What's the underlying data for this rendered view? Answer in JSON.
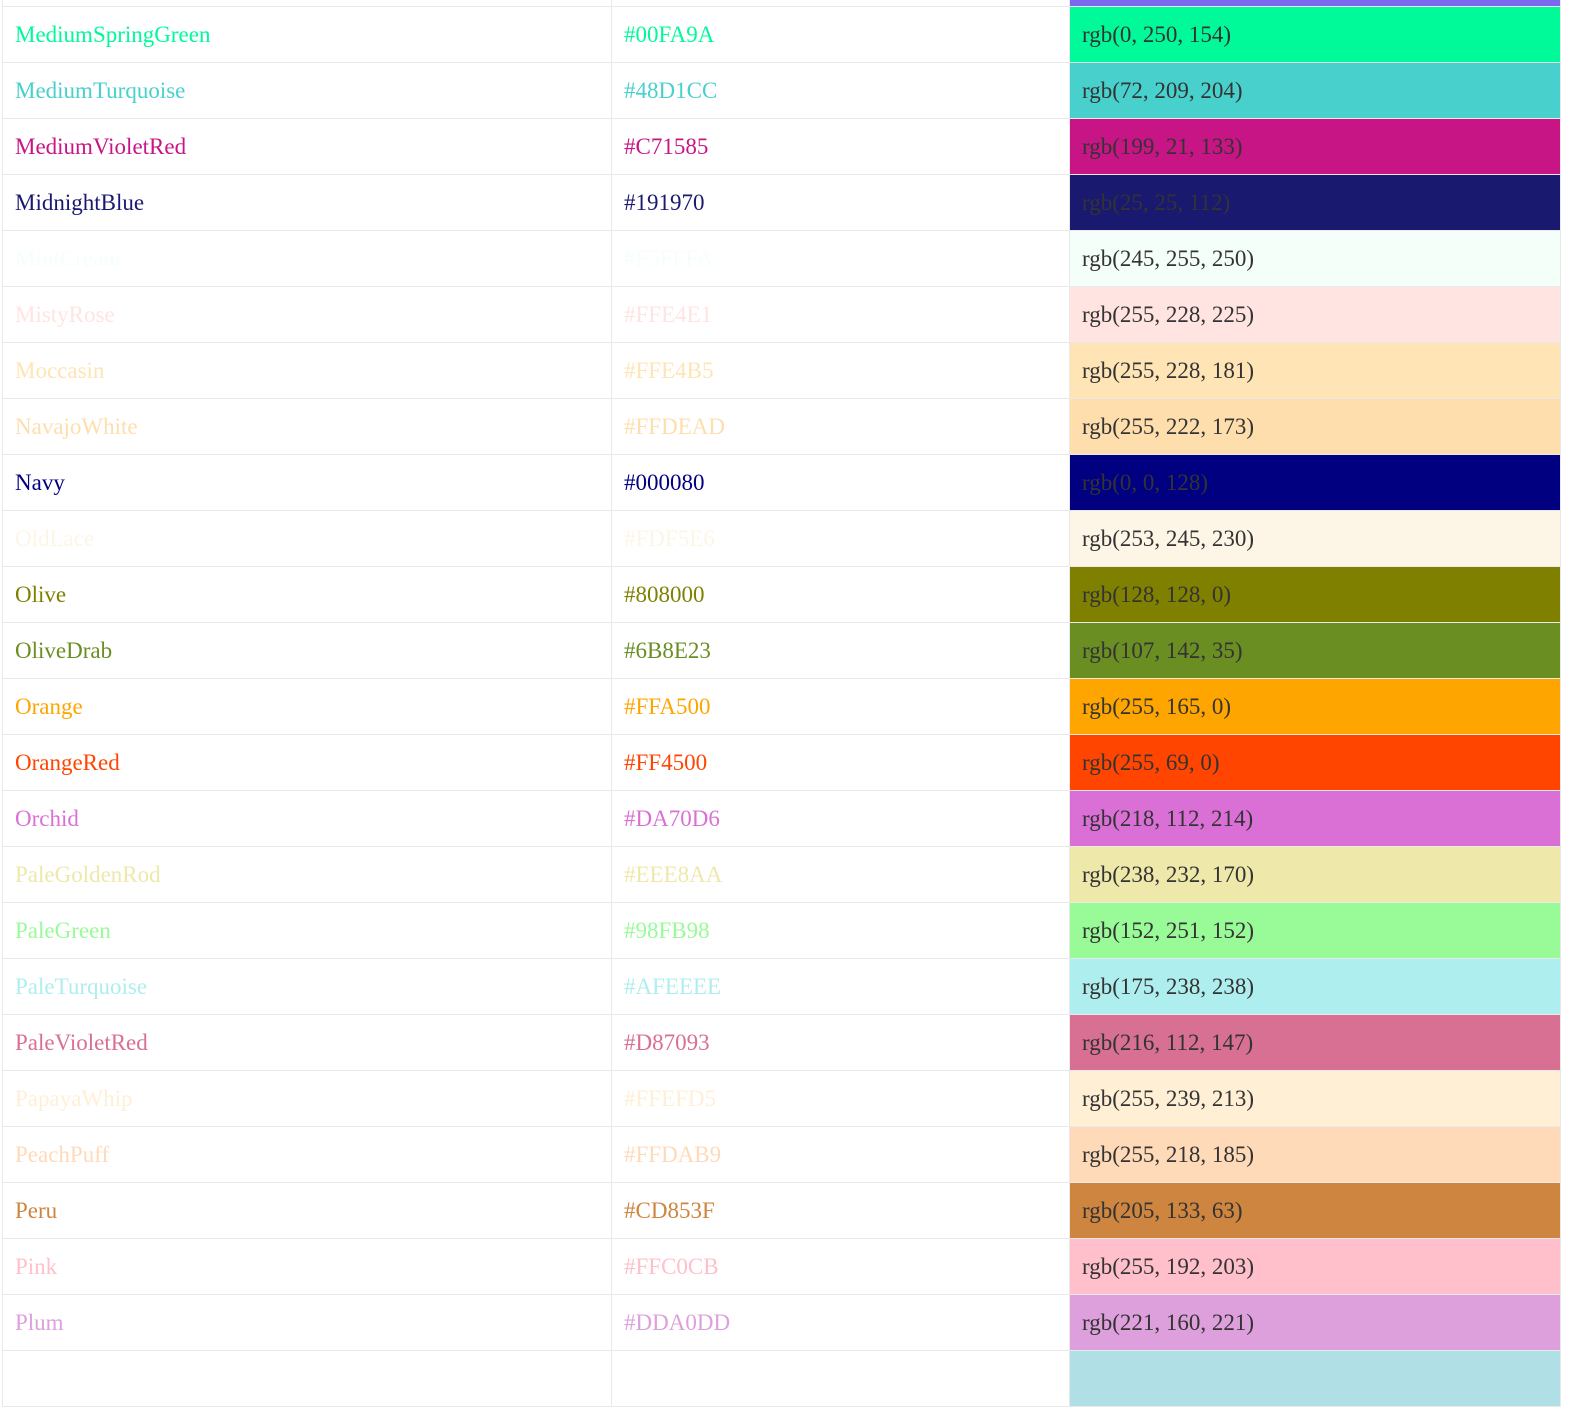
{
  "colors": [
    {
      "name": "",
      "hex": "",
      "rgb": "",
      "color": "#7B68EE"
    },
    {
      "name": "MediumSpringGreen",
      "hex": "#00FA9A",
      "rgb": "rgb(0, 250, 154)",
      "color": "#00FA9A"
    },
    {
      "name": "MediumTurquoise",
      "hex": "#48D1CC",
      "rgb": "rgb(72, 209, 204)",
      "color": "#48D1CC"
    },
    {
      "name": "MediumVioletRed",
      "hex": "#C71585",
      "rgb": "rgb(199, 21, 133)",
      "color": "#C71585"
    },
    {
      "name": "MidnightBlue",
      "hex": "#191970",
      "rgb": "rgb(25, 25, 112)",
      "color": "#191970"
    },
    {
      "name": "MintCream",
      "hex": "#F5FFFA",
      "rgb": "rgb(245, 255, 250)",
      "color": "#F5FFFA"
    },
    {
      "name": "MistyRose",
      "hex": "#FFE4E1",
      "rgb": "rgb(255, 228, 225)",
      "color": "#FFE4E1"
    },
    {
      "name": "Moccasin",
      "hex": "#FFE4B5",
      "rgb": "rgb(255, 228, 181)",
      "color": "#FFE4B5"
    },
    {
      "name": "NavajoWhite",
      "hex": "#FFDEAD",
      "rgb": "rgb(255, 222, 173)",
      "color": "#FFDEAD"
    },
    {
      "name": "Navy",
      "hex": "#000080",
      "rgb": "rgb(0, 0, 128)",
      "color": "#000080"
    },
    {
      "name": "OldLace",
      "hex": "#FDF5E6",
      "rgb": "rgb(253, 245, 230)",
      "color": "#FDF5E6"
    },
    {
      "name": "Olive",
      "hex": "#808000",
      "rgb": "rgb(128, 128, 0)",
      "color": "#808000"
    },
    {
      "name": "OliveDrab",
      "hex": "#6B8E23",
      "rgb": "rgb(107, 142, 35)",
      "color": "#6B8E23"
    },
    {
      "name": "Orange",
      "hex": "#FFA500",
      "rgb": "rgb(255, 165, 0)",
      "color": "#FFA500"
    },
    {
      "name": "OrangeRed",
      "hex": "#FF4500",
      "rgb": "rgb(255, 69, 0)",
      "color": "#FF4500"
    },
    {
      "name": "Orchid",
      "hex": "#DA70D6",
      "rgb": "rgb(218, 112, 214)",
      "color": "#DA70D6"
    },
    {
      "name": "PaleGoldenRod",
      "hex": "#EEE8AA",
      "rgb": "rgb(238, 232, 170)",
      "color": "#EEE8AA"
    },
    {
      "name": "PaleGreen",
      "hex": "#98FB98",
      "rgb": "rgb(152, 251, 152)",
      "color": "#98FB98"
    },
    {
      "name": "PaleTurquoise",
      "hex": "#AFEEEE",
      "rgb": "rgb(175, 238, 238)",
      "color": "#AFEEEE"
    },
    {
      "name": "PaleVioletRed",
      "hex": "#D87093",
      "rgb": "rgb(216, 112, 147)",
      "color": "#D87093"
    },
    {
      "name": "PapayaWhip",
      "hex": "#FFEFD5",
      "rgb": "rgb(255, 239, 213)",
      "color": "#FFEFD5"
    },
    {
      "name": "PeachPuff",
      "hex": "#FFDAB9",
      "rgb": "rgb(255, 218, 185)",
      "color": "#FFDAB9"
    },
    {
      "name": "Peru",
      "hex": "#CD853F",
      "rgb": "rgb(205, 133, 63)",
      "color": "#CD853F"
    },
    {
      "name": "Pink",
      "hex": "#FFC0CB",
      "rgb": "rgb(255, 192, 203)",
      "color": "#FFC0CB"
    },
    {
      "name": "Plum",
      "hex": "#DDA0DD",
      "rgb": "rgb(221, 160, 221)",
      "color": "#DDA0DD"
    },
    {
      "name": "",
      "hex": "",
      "rgb": "",
      "color": "#B0E0E6"
    }
  ]
}
